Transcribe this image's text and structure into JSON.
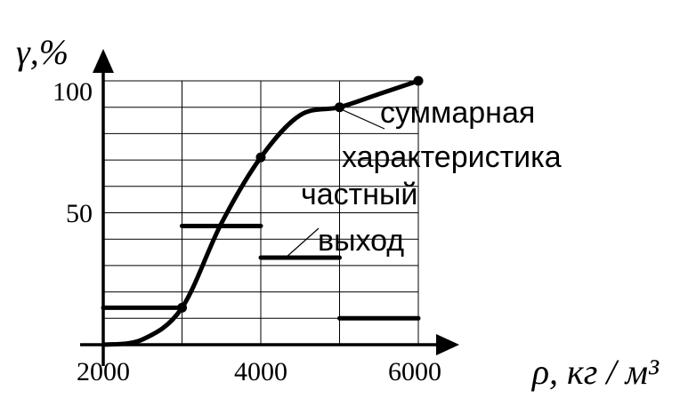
{
  "chart_data": {
    "type": "line",
    "xlabel": "ρ, кг / м³",
    "ylabel": "γ,%",
    "xlim": [
      2000,
      6000
    ],
    "ylim": [
      0,
      100
    ],
    "x_ticks": [
      "2000",
      "4000",
      "6000"
    ],
    "y_ticks": [
      "50",
      "100"
    ],
    "grid": true,
    "series": [
      {
        "name": "суммарная характеристика",
        "x": [
          2000,
          2500,
          3000,
          3500,
          4000,
          4500,
          5000,
          5500,
          6000
        ],
        "y": [
          0,
          2,
          14,
          46,
          71,
          87,
          90,
          95,
          100
        ],
        "markers": [
          [
            3000,
            14
          ],
          [
            4000,
            71
          ],
          [
            5000,
            90
          ],
          [
            6000,
            100
          ]
        ]
      },
      {
        "name": "частный выход",
        "type": "step",
        "segments": [
          {
            "x0": 2000,
            "x1": 3000,
            "y": 14
          },
          {
            "x0": 3000,
            "x1": 4000,
            "y": 45
          },
          {
            "x0": 4000,
            "x1": 5000,
            "y": 33
          },
          {
            "x0": 5000,
            "x1": 6000,
            "y": 10
          }
        ]
      }
    ],
    "annotations": [
      "суммарная",
      "характеристика",
      "частный",
      "выход"
    ]
  }
}
